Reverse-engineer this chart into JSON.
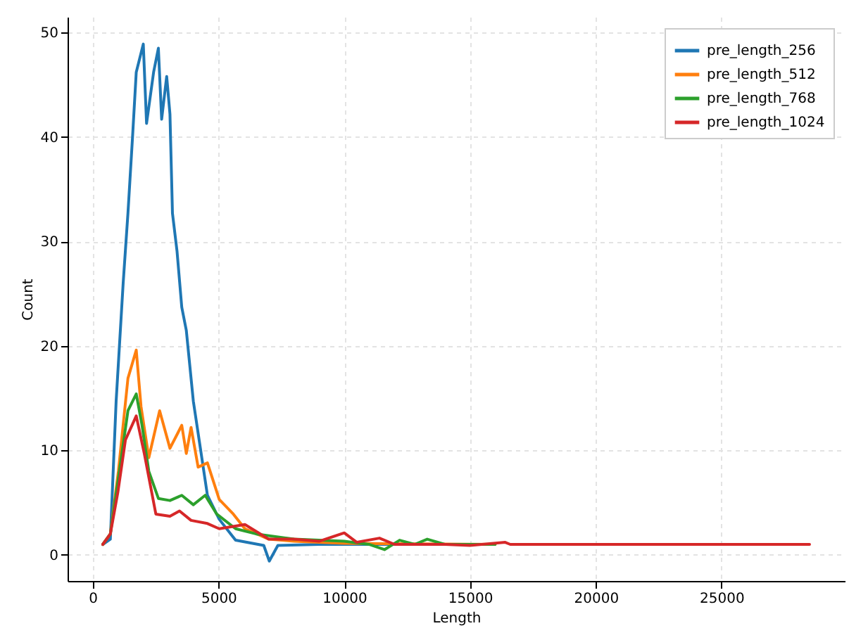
{
  "chart_data": {
    "type": "line",
    "xlabel": "Length",
    "ylabel": "Count",
    "xlim": [
      -1000,
      29900
    ],
    "ylim": [
      -2.5,
      51.5
    ],
    "xticks": [
      0,
      5000,
      10000,
      15000,
      20000,
      25000
    ],
    "yticks": [
      0,
      10,
      20,
      30,
      40,
      50
    ],
    "grid": true,
    "legend": "top right",
    "line_style": "solid",
    "marker": "none",
    "series": [
      {
        "name": "pre_length_256",
        "color": "#1f77b4",
        "x": [
          400,
          700,
          930,
          1210,
          1400,
          1580,
          1730,
          2010,
          2140,
          2420,
          2610,
          2740,
          2940,
          3070,
          3170,
          3350,
          3540,
          3720,
          4000,
          4280,
          4560,
          5030,
          5680,
          6800,
          7020,
          7360,
          9000,
          12000
        ],
        "values": [
          1,
          1.5,
          14.7,
          26,
          32.7,
          39.9,
          46.2,
          48.9,
          41.3,
          46.2,
          48.5,
          41.7,
          45.8,
          42.2,
          32.7,
          29.1,
          23.7,
          21.5,
          14.7,
          10.2,
          5.7,
          3.4,
          1.4,
          0.9,
          -0.6,
          0.9,
          1,
          1
        ]
      },
      {
        "name": "pre_length_512",
        "color": "#ff7f0e",
        "x": [
          400,
          700,
          1020,
          1400,
          1730,
          1920,
          2230,
          2660,
          3070,
          3540,
          3720,
          3910,
          4190,
          4560,
          5030,
          5590,
          6050,
          7000,
          8000,
          10000,
          16000
        ],
        "values": [
          1,
          2,
          8,
          16.9,
          19.6,
          14.2,
          9.3,
          13.8,
          10.2,
          12.4,
          9.7,
          12.2,
          8.4,
          8.8,
          5.3,
          3.9,
          2.5,
          1.5,
          1.3,
          1.1,
          1
        ]
      },
      {
        "name": "pre_length_768",
        "color": "#2ca02c",
        "x": [
          400,
          700,
          1000,
          1400,
          1730,
          1960,
          2230,
          2610,
          3070,
          3540,
          4000,
          4470,
          4930,
          5680,
          6500,
          8000,
          10000,
          11000,
          11600,
          12200,
          12800,
          13300,
          14000,
          16000
        ],
        "values": [
          1,
          2,
          7,
          13.8,
          15.4,
          12.4,
          8,
          5.4,
          5.2,
          5.7,
          4.8,
          5.7,
          3.9,
          2.5,
          2,
          1.5,
          1.3,
          1,
          0.5,
          1.4,
          1,
          1.5,
          1,
          1
        ]
      },
      {
        "name": "pre_length_1024",
        "color": "#d62728",
        "x": [
          400,
          700,
          1000,
          1300,
          1730,
          2050,
          2510,
          3070,
          3450,
          3910,
          4560,
          5030,
          6050,
          7000,
          8000,
          9000,
          10000,
          10500,
          11400,
          12000,
          14000,
          15000,
          16400,
          16600,
          28500
        ],
        "values": [
          1,
          2,
          6,
          11,
          13.3,
          9.7,
          3.9,
          3.7,
          4.2,
          3.3,
          3,
          2.5,
          2.9,
          1.5,
          1.5,
          1.3,
          2.1,
          1.2,
          1.6,
          1,
          1,
          0.9,
          1.2,
          1,
          1
        ]
      }
    ]
  }
}
